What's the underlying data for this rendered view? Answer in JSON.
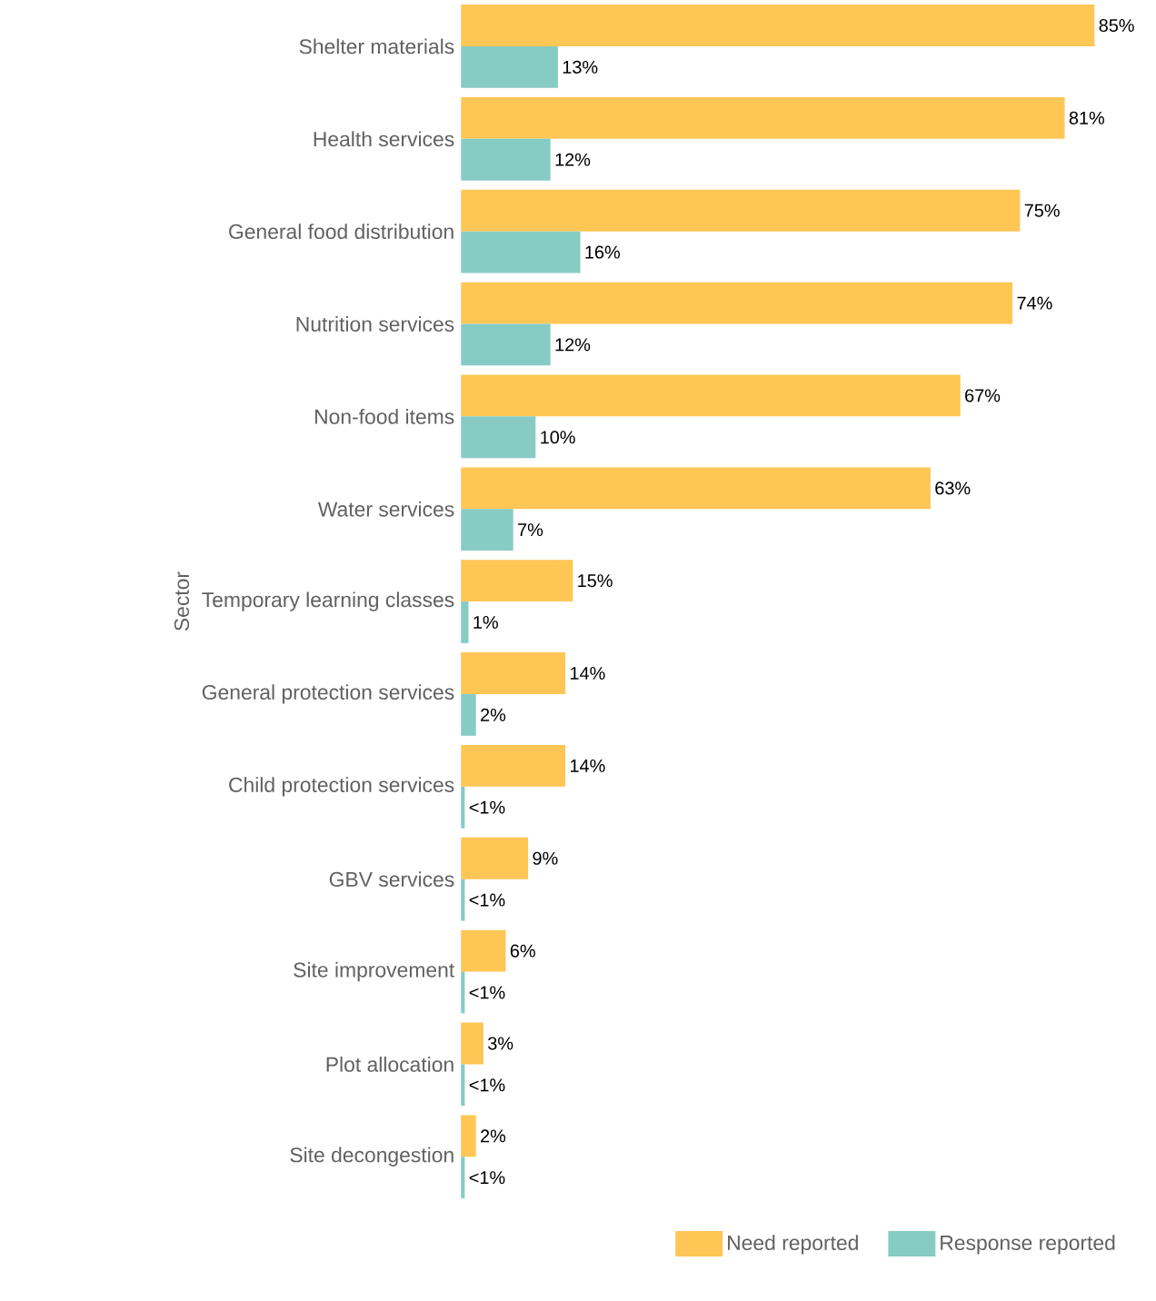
{
  "chart_data": {
    "type": "bar",
    "orientation": "horizontal",
    "ylabel": "Sector",
    "legend": "bottom right",
    "categories": [
      "Shelter materials",
      "Health services",
      "General food distribution",
      "Nutrition services",
      "Non-food items",
      "Water services",
      "Temporary learning classes",
      "General protection services",
      "Child protection services",
      "GBV services",
      "Site improvement",
      "Plot allocation",
      "Site decongestion"
    ],
    "series": [
      {
        "name": "Need reported",
        "color": "#fec655",
        "values": [
          85,
          81,
          75,
          74,
          67,
          63,
          15,
          14,
          14,
          9,
          6,
          3,
          2
        ],
        "value_labels": [
          "85%",
          "81%",
          "75%",
          "74%",
          "67%",
          "63%",
          "15%",
          "14%",
          "14%",
          "9%",
          "6%",
          "3%",
          "2%"
        ]
      },
      {
        "name": "Response reported",
        "color": "#87cbc5",
        "values": [
          13,
          12,
          16,
          12,
          10,
          7,
          1,
          2,
          0.5,
          0.5,
          0.5,
          0.5,
          0.5
        ],
        "value_labels": [
          "13%",
          "12%",
          "16%",
          "12%",
          "10%",
          "7%",
          "1%",
          "2%",
          "<1%",
          "<1%",
          "<1%",
          "<1%",
          "<1%"
        ]
      }
    ]
  }
}
